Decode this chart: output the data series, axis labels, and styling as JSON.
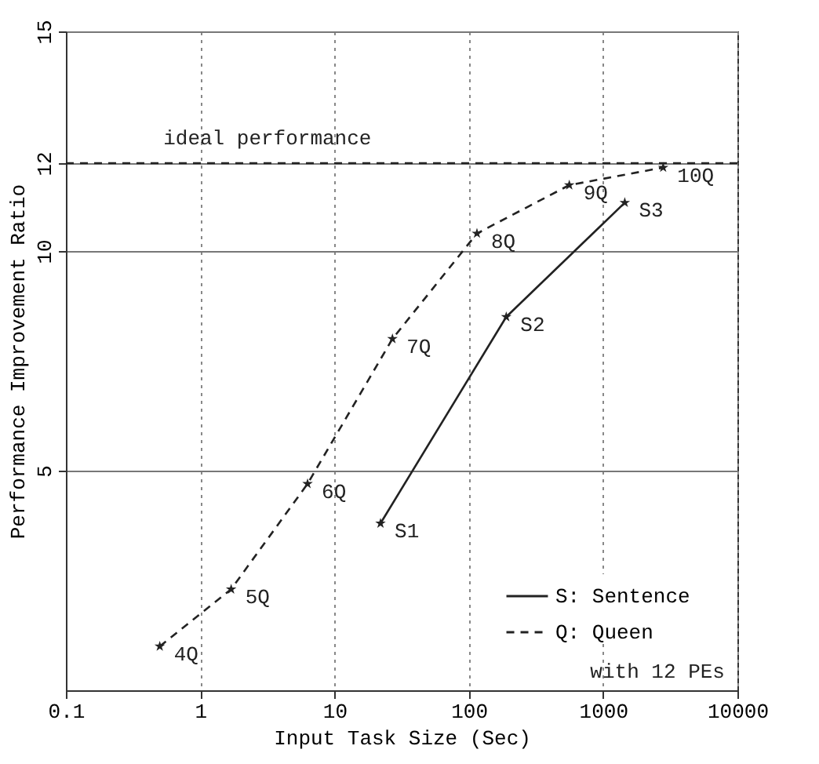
{
  "chart_data": {
    "type": "line",
    "xlabel": "Input Task Size (Sec)",
    "ylabel": "Performance Improvement Ratio",
    "log": "x",
    "xlim": [
      0.1,
      10000
    ],
    "xticks": [
      0.1,
      1,
      10,
      100,
      1000,
      10000
    ],
    "ylim": [
      0,
      15
    ],
    "yticks": [
      5,
      10,
      12,
      15
    ],
    "grid": true,
    "legend": "bottom right",
    "marker": "star",
    "series": [
      {
        "name": "S: Sentence",
        "color": "#222222",
        "line_style": "solid",
        "x": [
          22,
          190,
          1450
        ],
        "values": [
          3.8,
          8.5,
          11.1
        ]
      },
      {
        "name": "Q: Queen",
        "color": "#222222",
        "line_style": "dashed",
        "x": [
          0.5,
          1.7,
          6.3,
          27,
          115,
          560,
          2800
        ],
        "values": [
          1.0,
          2.3,
          4.7,
          8.0,
          10.4,
          11.5,
          11.9
        ]
      }
    ],
    "ref_lines": [
      {
        "axis": "y",
        "value": 12,
        "label": "ideal performance",
        "line_style": "dashed"
      }
    ],
    "annotations": [
      {
        "text": "4Q",
        "x": 0.5,
        "y": 1.0
      },
      {
        "text": "5Q",
        "x": 1.7,
        "y": 2.3
      },
      {
        "text": "6Q",
        "x": 6.3,
        "y": 4.7
      },
      {
        "text": "7Q",
        "x": 27,
        "y": 8.0
      },
      {
        "text": "8Q",
        "x": 115,
        "y": 10.4
      },
      {
        "text": "9Q",
        "x": 560,
        "y": 11.5
      },
      {
        "text": "10Q",
        "x": 2800,
        "y": 11.9
      },
      {
        "text": "S1",
        "x": 22,
        "y": 3.8
      },
      {
        "text": "S2",
        "x": 190,
        "y": 8.5
      },
      {
        "text": "S3",
        "x": 1450,
        "y": 11.1
      },
      "with 12 PEs"
    ]
  }
}
